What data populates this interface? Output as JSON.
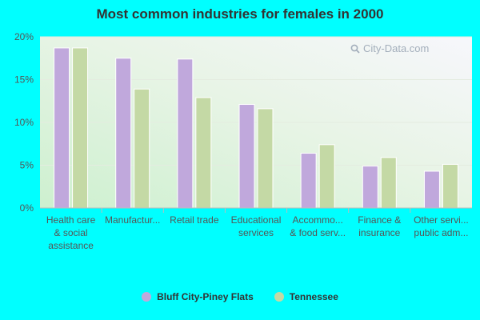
{
  "chart_data": {
    "type": "bar",
    "title": "Most common industries for females in 2000",
    "categories": [
      [
        "Health care",
        "& social",
        "assistance"
      ],
      [
        "Manufactur..."
      ],
      [
        "Retail trade"
      ],
      [
        "Educational",
        "services"
      ],
      [
        "Accommo...",
        "& food serv..."
      ],
      [
        "Finance &",
        "insurance"
      ],
      [
        "Other servi...",
        "public adm..."
      ]
    ],
    "series": [
      {
        "name": "Bluff City-Piney Flats",
        "color": "#c0a8dc",
        "values": [
          18.7,
          17.5,
          17.4,
          12.1,
          6.4,
          4.9,
          4.3
        ]
      },
      {
        "name": "Tennessee",
        "color": "#c4d9a5",
        "values": [
          18.7,
          13.9,
          12.9,
          11.6,
          7.4,
          5.9,
          5.1
        ]
      }
    ],
    "yticks": [
      "0%",
      "5%",
      "10%",
      "15%",
      "20%"
    ],
    "ylim": [
      0,
      20
    ],
    "grid": true,
    "legend": "bottom-center",
    "xlabel": "",
    "ylabel": ""
  },
  "watermark": "City-Data.com"
}
